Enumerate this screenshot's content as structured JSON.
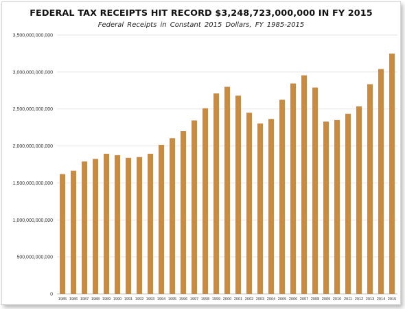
{
  "chart_data": {
    "type": "bar",
    "title": "FEDERAL TAX RECEIPTS HIT RECORD $3,248,723,000,000 IN FY 2015",
    "subtitle": "Federal Receipts in Constant 2015 Dollars, FY 1985-2015",
    "xlabel": "",
    "ylabel": "",
    "ylim": [
      0,
      3500000000000
    ],
    "y_ticks": [
      0,
      500000000000,
      1000000000000,
      1500000000000,
      2000000000000,
      2500000000000,
      3000000000000,
      3500000000000
    ],
    "y_tick_labels": [
      "0",
      "500,000,000,000",
      "1,000,000,000,000",
      "1,500,000,000,000",
      "2,000,000,000,000",
      "2,500,000,000,000",
      "3,000,000,000,000",
      "3,500,000,000,000"
    ],
    "grid": true,
    "legend": "none",
    "bar_color": "#c98a42",
    "categories": [
      "1985",
      "1986",
      "1987",
      "1988",
      "1989",
      "1990",
      "1991",
      "1992",
      "1993",
      "1994",
      "1995",
      "1996",
      "1997",
      "1998",
      "1999",
      "2000",
      "2001",
      "2002",
      "2003",
      "2004",
      "2005",
      "2006",
      "2007",
      "2008",
      "2009",
      "2010",
      "2011",
      "2012",
      "2013",
      "2014",
      "2015"
    ],
    "values": [
      1620000000000,
      1665000000000,
      1790000000000,
      1825000000000,
      1895000000000,
      1875000000000,
      1840000000000,
      1850000000000,
      1895000000000,
      2015000000000,
      2105000000000,
      2200000000000,
      2345000000000,
      2510000000000,
      2710000000000,
      2800000000000,
      2680000000000,
      2450000000000,
      2305000000000,
      2365000000000,
      2625000000000,
      2845000000000,
      2955000000000,
      2790000000000,
      2330000000000,
      2350000000000,
      2435000000000,
      2535000000000,
      2835000000000,
      3040000000000,
      3248723000000
    ]
  }
}
